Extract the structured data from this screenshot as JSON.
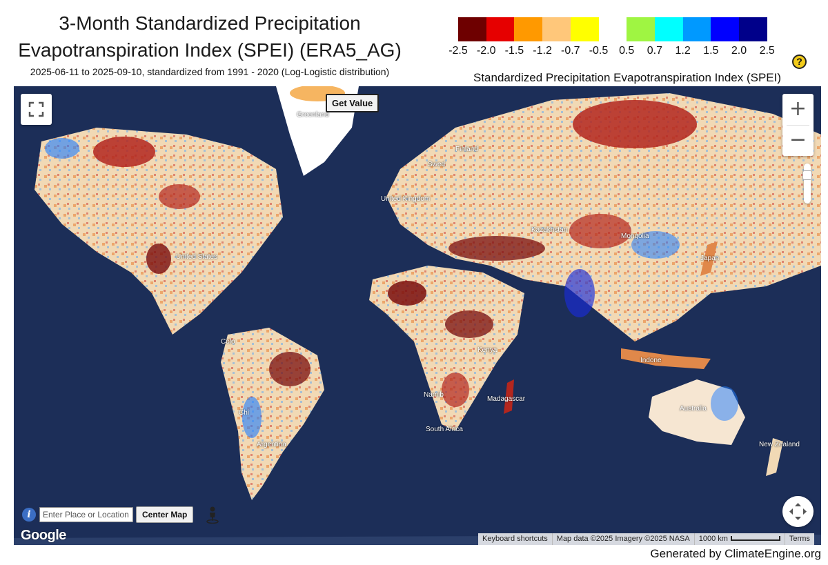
{
  "title": {
    "line1": "3-Month Standardized Precipitation",
    "line2": "Evapotranspiration Index (SPEI) (ERA5_AG)",
    "subtitle": "2025-06-11 to 2025-09-10, standardized from 1991 - 2020 (Log-Logistic distribution)"
  },
  "legend": {
    "label": "Standardized Precipitation Evapotranspiration Index (SPEI)",
    "colors": [
      "#6e0000",
      "#e60000",
      "#ff9900",
      "#ffc77a",
      "#ffff00",
      "#ffffff",
      "#9ff542",
      "#00ffff",
      "#0099ff",
      "#0000ff",
      "#00008a"
    ],
    "ticks": [
      "-2.5",
      "-2.0",
      "-1.5",
      "-1.2",
      "-0.7",
      "-0.5",
      "0.5",
      "0.7",
      "1.2",
      "1.5",
      "2.0",
      "2.5"
    ],
    "help_icon": "question-icon"
  },
  "map": {
    "get_value_label": "Get Value",
    "zoom_in": "+",
    "zoom_out": "−",
    "search_placeholder": "Enter Place or Location",
    "center_button": "Center Map",
    "info_icon": "i",
    "google_logo": "Google",
    "attribution": {
      "shortcuts": "Keyboard shortcuts",
      "data": "Map data ©2025 Imagery ©2025 NASA",
      "scale": "1000 km",
      "terms": "Terms"
    },
    "labels": [
      {
        "key": "greenland",
        "text": "Greenland"
      },
      {
        "key": "finland",
        "text": "Finland"
      },
      {
        "key": "sweden",
        "text": "Swed"
      },
      {
        "key": "uk",
        "text": "United Kingdom"
      },
      {
        "key": "kazakhstan",
        "text": "Kazakhstan"
      },
      {
        "key": "mongolia",
        "text": "Mongolia"
      },
      {
        "key": "us",
        "text": "United States"
      },
      {
        "key": "japan",
        "text": "Japan"
      },
      {
        "key": "colombia",
        "text": "Colo"
      },
      {
        "key": "kenya",
        "text": "Kenya"
      },
      {
        "key": "indonesia",
        "text": "Indone"
      },
      {
        "key": "namibia",
        "text": "Namib"
      },
      {
        "key": "madagascar",
        "text": "Madagascar"
      },
      {
        "key": "australia",
        "text": "Australia"
      },
      {
        "key": "south_africa",
        "text": "South Africa"
      },
      {
        "key": "chile",
        "text": "Chi"
      },
      {
        "key": "argentina",
        "text": "Argentina"
      },
      {
        "key": "new_zealand",
        "text": "New Zealand"
      }
    ]
  },
  "footer": "Generated by ClimateEngine.org"
}
